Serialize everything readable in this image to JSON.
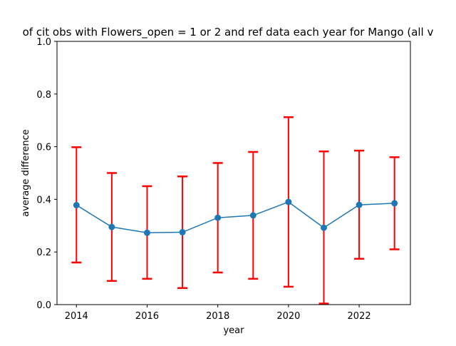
{
  "chart_data": {
    "type": "line",
    "title": "of cit obs with Flowers_open = 1 or 2 and ref data each year for Mango (all v",
    "xlabel": "year",
    "ylabel": "average difference",
    "xlim": [
      2013.45,
      2023.45
    ],
    "ylim": [
      0,
      1.0
    ],
    "xticks": [
      2014,
      2016,
      2018,
      2020,
      2022
    ],
    "yticks": [
      0.0,
      0.2,
      0.4,
      0.6,
      0.8,
      1.0
    ],
    "ytick_labels": [
      "0.0",
      "0.2",
      "0.4",
      "0.6",
      "0.8",
      "1.0"
    ],
    "grid": false,
    "series": [
      {
        "x": [
          2014,
          2015,
          2016,
          2017,
          2018,
          2019,
          2020,
          2021,
          2022,
          2023
        ],
        "y": [
          0.378,
          0.295,
          0.273,
          0.275,
          0.33,
          0.339,
          0.39,
          0.292,
          0.379,
          0.385
        ],
        "error_low": [
          0.16,
          0.09,
          0.098,
          0.063,
          0.122,
          0.098,
          0.068,
          0.004,
          0.174,
          0.21
        ],
        "error_high": [
          0.598,
          0.5,
          0.45,
          0.487,
          0.538,
          0.58,
          0.712,
          0.582,
          0.585,
          0.56
        ],
        "color": "#1f77b4",
        "error_color": "#ff0000"
      }
    ]
  }
}
